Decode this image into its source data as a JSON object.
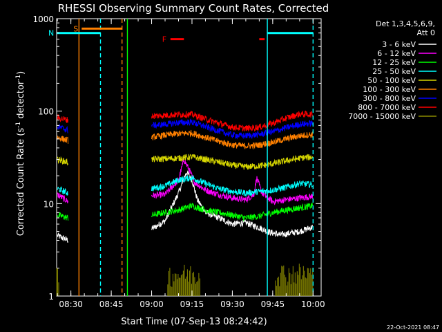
{
  "chart_data": {
    "type": "line",
    "title": "RHESSI Observing Summary Count Rates, Corrected",
    "xlabel": "Start Time (07-Sep-13 08:24:42)",
    "ylabel": "Corrected Count Rate (s⁻¹ detector⁻¹)",
    "ylabel_main": "Corrected Count Rate (s",
    "ylabel_sup1": "-1",
    "ylabel_mid": " detector",
    "ylabel_sup2": "-1",
    "ylabel_end": ")",
    "yscale": "log",
    "ylim": [
      1,
      1000
    ],
    "xlim": [
      "08:24:42",
      "10:03:00"
    ],
    "x_ticks": [
      "08:30",
      "08:45",
      "09:00",
      "09:15",
      "09:30",
      "09:45",
      "10:00"
    ],
    "y_ticks": [
      "1",
      "10",
      "100",
      "1000"
    ],
    "legend_header": [
      "Det 1,3,4,5,6,9,",
      "Att 0"
    ],
    "legend_position": "right",
    "timestamp": "22-Oct-2021 08:47",
    "series": [
      {
        "name": "3 - 6 keV",
        "color": "#ffffff",
        "t": [
          "08:25",
          "08:29",
          "08:41",
          "09:00",
          "09:05",
          "09:10",
          "09:13",
          "09:15",
          "09:17",
          "09:20",
          "09:25",
          "09:30",
          "09:35",
          "09:40",
          "09:43",
          "09:45",
          "09:48",
          "09:50",
          "09:55",
          "10:00"
        ],
        "values": [
          4.5,
          4.0,
          null,
          5.3,
          6.5,
          13,
          22,
          18,
          11,
          8,
          7,
          6,
          6.2,
          5.5,
          5,
          4.8,
          4.6,
          4.7,
          5,
          5.6
        ]
      },
      {
        "name": "6 - 12 keV",
        "color": "#ff00ff",
        "t": [
          "08:25",
          "08:29",
          "08:41",
          "09:00",
          "09:05",
          "09:10",
          "09:12",
          "09:14",
          "09:16",
          "09:20",
          "09:25",
          "09:30",
          "09:35",
          "09:38",
          "09:39",
          "09:41",
          "09:45",
          "09:50",
          "09:55",
          "10:00"
        ],
        "values": [
          12.5,
          10.5,
          null,
          12.2,
          12.5,
          18,
          30,
          23,
          17,
          14,
          12.5,
          11.5,
          11,
          12.5,
          19,
          13,
          10.5,
          11,
          11.5,
          12
        ]
      },
      {
        "name": "12 - 25 keV",
        "color": "#00ff00",
        "t": [
          "08:25",
          "08:29",
          "08:41",
          "09:00",
          "09:05",
          "09:10",
          "09:15",
          "09:20",
          "09:25",
          "09:30",
          "09:35",
          "09:40",
          "09:45",
          "09:50",
          "09:55",
          "10:00"
        ],
        "values": [
          7.5,
          7,
          null,
          7.5,
          8,
          8.5,
          9.5,
          8.5,
          8,
          7.5,
          7,
          7.3,
          8,
          8.5,
          9,
          9.5
        ]
      },
      {
        "name": "25 - 50 keV",
        "color": "#00ffff",
        "t": [
          "08:25",
          "08:29",
          "08:41",
          "09:00",
          "09:05",
          "09:10",
          "09:15",
          "09:20",
          "09:25",
          "09:30",
          "09:35",
          "09:40",
          "09:45",
          "09:50",
          "09:55",
          "10:00"
        ],
        "values": [
          14.5,
          13,
          null,
          14.5,
          15.5,
          18,
          19,
          16.5,
          14.5,
          13.5,
          13,
          13.5,
          14,
          15,
          16.5,
          16
        ]
      },
      {
        "name": "50 - 100 keV",
        "color": "#d6d600",
        "t": [
          "08:25",
          "08:29",
          "08:41",
          "09:00",
          "09:05",
          "09:10",
          "09:15",
          "09:20",
          "09:25",
          "09:30",
          "09:35",
          "09:40",
          "09:45",
          "09:50",
          "09:55",
          "10:00"
        ],
        "values": [
          30,
          28,
          null,
          30,
          30.5,
          31,
          32,
          30,
          28,
          26,
          25,
          25.5,
          27,
          29,
          31,
          32
        ]
      },
      {
        "name": "100 - 300 keV",
        "color": "#ff8000",
        "t": [
          "08:25",
          "08:29",
          "08:41",
          "09:00",
          "09:05",
          "09:10",
          "09:15",
          "09:20",
          "09:25",
          "09:30",
          "09:35",
          "09:40",
          "09:45",
          "09:50",
          "09:55",
          "10:00"
        ],
        "values": [
          52,
          48,
          null,
          52,
          55,
          57,
          58,
          52,
          47,
          43,
          42,
          43,
          46,
          50,
          54,
          56
        ]
      },
      {
        "name": "300 - 800 keV",
        "color": "#0000ff",
        "t": [
          "08:25",
          "08:29",
          "08:41",
          "09:00",
          "09:05",
          "09:10",
          "09:15",
          "09:20",
          "09:25",
          "09:30",
          "09:35",
          "09:40",
          "09:45",
          "09:50",
          "09:55",
          "10:00"
        ],
        "values": [
          68,
          62,
          null,
          70,
          72,
          75,
          76,
          68,
          61,
          55,
          54,
          56,
          60,
          66,
          72,
          74
        ]
      },
      {
        "name": "800 - 7000 keV",
        "color": "#ff0000",
        "t": [
          "08:25",
          "08:29",
          "08:41",
          "09:00",
          "09:05",
          "09:10",
          "09:15",
          "09:20",
          "09:25",
          "09:30",
          "09:35",
          "09:40",
          "09:45",
          "09:50",
          "09:55",
          "10:00"
        ],
        "values": [
          85,
          80,
          null,
          88,
          90,
          92,
          92,
          82,
          74,
          67,
          65,
          67,
          74,
          84,
          93,
          92
        ]
      },
      {
        "name": "7000 - 15000 keV",
        "color": "#8b8b00",
        "t": [],
        "values": []
      }
    ],
    "bursts": [
      {
        "series": "7000 - 15000 keV",
        "start": "09:06",
        "end": "09:18",
        "level": 1.65
      },
      {
        "series": "7000 - 15000 keV",
        "start": "09:46",
        "end": "10:00",
        "level": 1.7
      },
      {
        "series": "7000 - 15000 keV",
        "start": "08:24:42",
        "end": "08:25:30",
        "level": 1.6
      }
    ],
    "annotations": [
      {
        "label": "S",
        "color": "#ff8000",
        "start": "08:34",
        "end": "08:49",
        "level": 780,
        "style": "bar"
      },
      {
        "label": "N",
        "color": "#00ffff",
        "start": "08:24:42",
        "end": "08:41",
        "level": 700,
        "style": "bar"
      },
      {
        "label": "",
        "color": "#00ffff",
        "start": "09:43",
        "end": "10:00",
        "level": 700,
        "style": "bar"
      },
      {
        "label": "F",
        "color": "#ff0000",
        "start": "09:07",
        "end": "09:12",
        "level": 600,
        "style": "bar"
      },
      {
        "label": "",
        "color": "#ff0000",
        "start": "09:40",
        "end": "09:42",
        "level": 600,
        "style": "bar"
      }
    ],
    "vertical_lines": [
      {
        "time": "08:33",
        "color": "#ff8000",
        "style": "solid"
      },
      {
        "time": "08:41",
        "color": "#00ffff",
        "style": "dashed"
      },
      {
        "time": "08:49",
        "color": "#ff8000",
        "style": "dashed"
      },
      {
        "time": "08:51",
        "color": "#00ff00",
        "style": "solid"
      },
      {
        "time": "09:43",
        "color": "#00ffff",
        "style": "solid"
      },
      {
        "time": "10:00",
        "color": "#00ffff",
        "style": "dashed"
      }
    ]
  }
}
